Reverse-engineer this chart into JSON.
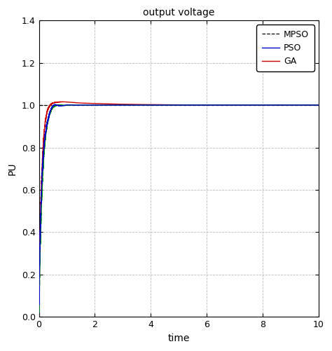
{
  "title": "output voltage",
  "xlabel": "time",
  "ylabel": "PU",
  "xlim": [
    0,
    10
  ],
  "ylim": [
    0,
    1.4
  ],
  "xticks": [
    0,
    2,
    4,
    6,
    8,
    10
  ],
  "yticks": [
    0,
    0.2,
    0.4,
    0.6,
    0.8,
    1.0,
    1.2,
    1.4
  ],
  "legend_labels": [
    "MPSO",
    "PSO",
    "GA"
  ],
  "line_colors": [
    "#0000cc",
    "#cc0000",
    "#009900"
  ],
  "ref_line_color": "#000000",
  "background_color": "#ffffff",
  "grid_color": "#bbbbbb",
  "figsize": [
    4.74,
    5.01
  ],
  "dpi": 100
}
